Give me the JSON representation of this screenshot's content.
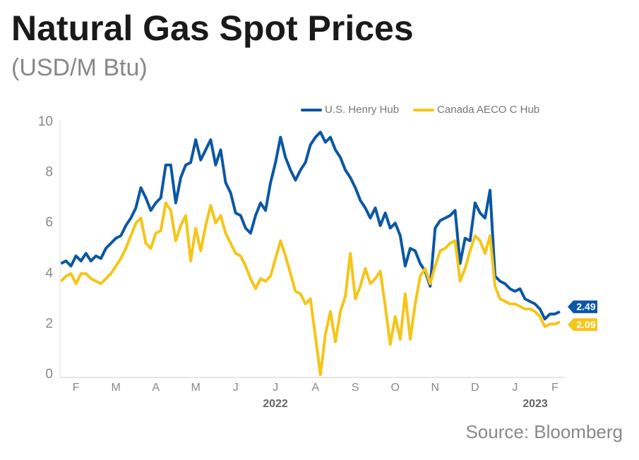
{
  "chart_data": {
    "type": "line",
    "title": "Natural Gas Spot Prices",
    "subtitle": "(USD/M Btu)",
    "source": "Source: Bloomberg",
    "year_labels": [
      "2022",
      "2023"
    ],
    "legend": "top-right",
    "xlim": [
      0.6,
      13.25
    ],
    "xticks": [
      {
        "value": 1,
        "label": "F"
      },
      {
        "value": 2,
        "label": "M"
      },
      {
        "value": 3,
        "label": "A"
      },
      {
        "value": 4,
        "label": "M"
      },
      {
        "value": 5,
        "label": "J"
      },
      {
        "value": 6,
        "label": "J"
      },
      {
        "value": 7,
        "label": "A"
      },
      {
        "value": 8,
        "label": "S"
      },
      {
        "value": 9,
        "label": "O"
      },
      {
        "value": 10,
        "label": "N"
      },
      {
        "value": 11,
        "label": "D"
      },
      {
        "value": 12,
        "label": "J"
      },
      {
        "value": 13,
        "label": "F"
      }
    ],
    "ylim": [
      0,
      10
    ],
    "yticks": [
      0,
      2,
      4,
      6,
      8,
      10
    ],
    "x": [
      0.625,
      0.75,
      0.875,
      1,
      1.125,
      1.25,
      1.375,
      1.5,
      1.625,
      1.75,
      1.875,
      2,
      2.125,
      2.25,
      2.375,
      2.5,
      2.625,
      2.75,
      2.875,
      3,
      3.125,
      3.25,
      3.375,
      3.5,
      3.625,
      3.75,
      3.875,
      4,
      4.125,
      4.25,
      4.375,
      4.5,
      4.625,
      4.75,
      4.875,
      5,
      5.125,
      5.25,
      5.375,
      5.5,
      5.625,
      5.75,
      5.875,
      6,
      6.125,
      6.25,
      6.375,
      6.5,
      6.625,
      6.75,
      6.875,
      7,
      7.125,
      7.25,
      7.375,
      7.5,
      7.625,
      7.75,
      7.875,
      8,
      8.125,
      8.25,
      8.375,
      8.5,
      8.625,
      8.75,
      8.875,
      9,
      9.125,
      9.25,
      9.375,
      9.5,
      9.625,
      9.75,
      9.875,
      10,
      10.125,
      10.25,
      10.375,
      10.5,
      10.625,
      10.75,
      10.875,
      11,
      11.125,
      11.25,
      11.375,
      11.5,
      11.625,
      11.75,
      11.875,
      12,
      12.125,
      12.25,
      12.375,
      12.5,
      12.625,
      12.75,
      12.875,
      13,
      13.125
    ],
    "series": [
      {
        "name": "U.S. Henry Hub",
        "color": "#0b57a4",
        "last_label": "2.49",
        "values": [
          4.4,
          4.5,
          4.3,
          4.7,
          4.5,
          4.8,
          4.5,
          4.7,
          4.6,
          5.0,
          5.2,
          5.4,
          5.5,
          5.9,
          6.2,
          6.6,
          7.4,
          7.0,
          6.5,
          6.8,
          7.0,
          8.3,
          8.3,
          6.8,
          7.8,
          8.3,
          8.4,
          9.3,
          8.5,
          8.9,
          9.3,
          8.3,
          8.9,
          7.6,
          7.2,
          6.4,
          6.3,
          5.8,
          5.6,
          6.3,
          6.8,
          6.5,
          7.6,
          8.4,
          9.4,
          8.6,
          8.1,
          7.7,
          8.1,
          8.4,
          9.1,
          9.4,
          9.6,
          9.2,
          9.4,
          8.9,
          8.6,
          8.1,
          7.8,
          7.4,
          6.9,
          6.6,
          6.2,
          6.6,
          5.9,
          6.4,
          5.8,
          6.0,
          5.5,
          4.3,
          5.0,
          4.9,
          4.4,
          4.1,
          3.5,
          5.8,
          6.1,
          6.2,
          6.3,
          6.5,
          4.4,
          5.4,
          5.3,
          6.8,
          6.4,
          6.2,
          7.3,
          3.9,
          3.7,
          3.6,
          3.4,
          3.3,
          3.4,
          3.0,
          2.9,
          2.8,
          2.6,
          2.2,
          2.4,
          2.4,
          2.49
        ]
      },
      {
        "name": "Canada AECO C Hub",
        "color": "#f5c518",
        "last_label": "2.09",
        "values": [
          3.7,
          3.9,
          4.0,
          3.6,
          4.0,
          4.0,
          3.8,
          3.7,
          3.6,
          3.8,
          4.0,
          4.3,
          4.6,
          5.0,
          5.5,
          6.0,
          6.2,
          5.2,
          5.0,
          5.6,
          5.7,
          6.8,
          6.5,
          5.3,
          5.9,
          6.3,
          4.5,
          5.8,
          4.9,
          5.9,
          6.7,
          6.0,
          6.3,
          5.6,
          5.2,
          4.8,
          4.7,
          4.3,
          3.8,
          3.4,
          3.8,
          3.7,
          3.9,
          4.6,
          5.3,
          4.7,
          4.0,
          3.3,
          3.2,
          2.8,
          3.0,
          1.5,
          0.0,
          1.6,
          2.5,
          1.3,
          2.5,
          3.1,
          4.8,
          3.0,
          3.5,
          4.2,
          3.6,
          3.8,
          4.1,
          2.7,
          1.2,
          2.3,
          1.4,
          3.2,
          1.4,
          2.8,
          3.9,
          4.2,
          3.6,
          4.3,
          4.9,
          5.0,
          5.2,
          5.3,
          3.7,
          4.2,
          4.9,
          5.5,
          5.3,
          4.8,
          5.5,
          3.5,
          3.0,
          2.9,
          2.8,
          2.8,
          2.7,
          2.6,
          2.6,
          2.5,
          2.3,
          1.9,
          2.0,
          2.0,
          2.09
        ]
      }
    ]
  }
}
